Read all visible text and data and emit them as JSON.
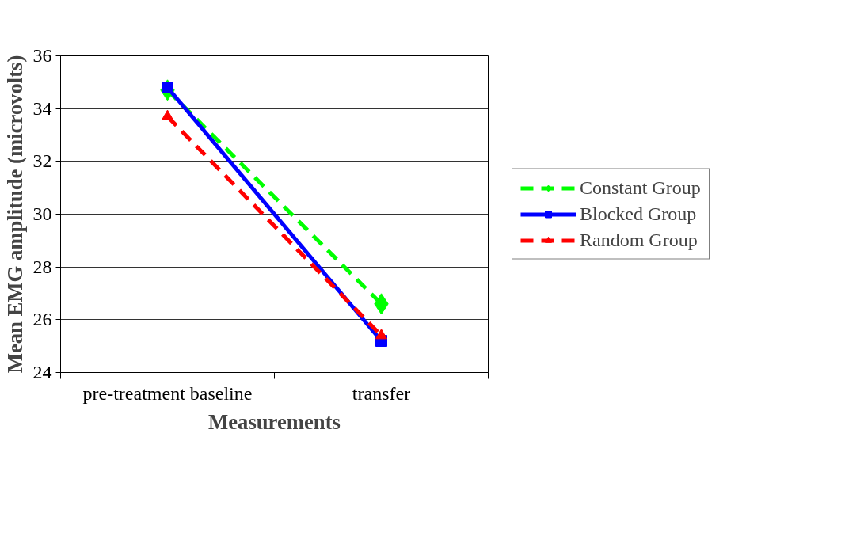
{
  "chart_data": {
    "type": "line",
    "xlabel": "Measurements",
    "ylabel": "Mean EMG amplitude (microvolts)",
    "categories": [
      "pre-treatment baseline",
      "transfer"
    ],
    "series": [
      {
        "name": "Constant Group",
        "color": "#00ff00",
        "values": [
          34.7,
          26.6
        ],
        "marker": "diamond",
        "line_style": "dashed"
      },
      {
        "name": "Blocked Group",
        "color": "#0000ff",
        "values": [
          34.8,
          25.2
        ],
        "marker": "square",
        "line_style": "solid"
      },
      {
        "name": "Random Group",
        "color": "#ff0000",
        "values": [
          33.7,
          25.4
        ],
        "marker": "triangle",
        "line_style": "dashed"
      }
    ],
    "ylim": [
      24,
      36
    ],
    "yticks": [
      24,
      26,
      28,
      30,
      32,
      34,
      36
    ],
    "grid": "y",
    "legend": "right"
  }
}
